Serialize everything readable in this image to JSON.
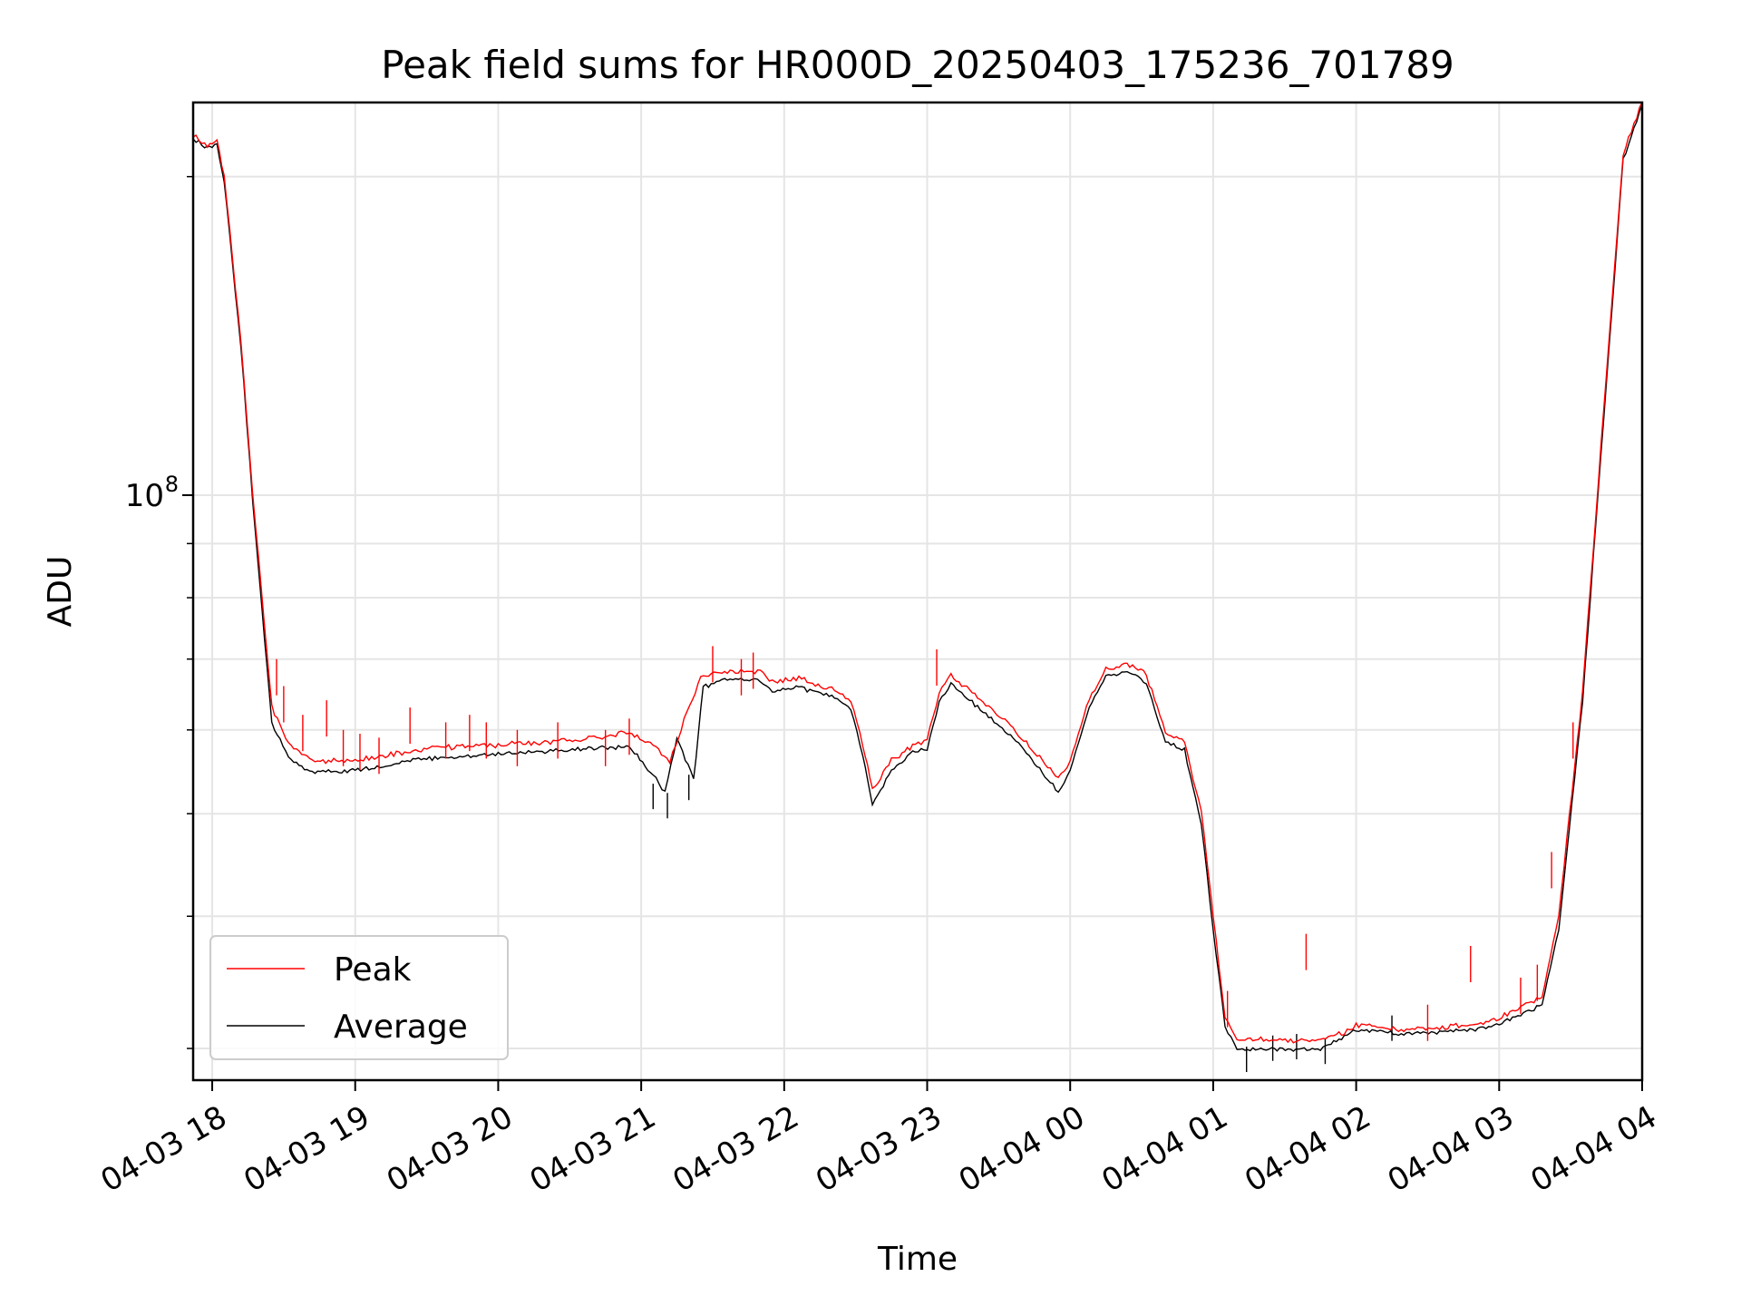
{
  "chart_data": {
    "type": "line",
    "title": "Peak field sums for HR000D_20250403_175236_701789",
    "xlabel": "Time",
    "ylabel": "ADU",
    "y_scale": "log",
    "xlim": [
      "2025-04-03 17:52",
      "2025-04-04 04:00"
    ],
    "ylim": [
      28000000,
      235000000
    ],
    "grid": true,
    "legend_position": "lower-left",
    "x_ticks": [
      {
        "t": "2025-04-03 18:00",
        "label": "04-03 18"
      },
      {
        "t": "2025-04-03 19:00",
        "label": "04-03 19"
      },
      {
        "t": "2025-04-03 20:00",
        "label": "04-03 20"
      },
      {
        "t": "2025-04-03 21:00",
        "label": "04-03 21"
      },
      {
        "t": "2025-04-03 22:00",
        "label": "04-03 22"
      },
      {
        "t": "2025-04-03 23:00",
        "label": "04-03 23"
      },
      {
        "t": "2025-04-04 00:00",
        "label": "04-04 00"
      },
      {
        "t": "2025-04-04 01:00",
        "label": "04-04 01"
      },
      {
        "t": "2025-04-04 02:00",
        "label": "04-04 02"
      },
      {
        "t": "2025-04-04 03:00",
        "label": "04-04 03"
      },
      {
        "t": "2025-04-04 04:00",
        "label": "04-04 04"
      }
    ],
    "y_major_ticks": [
      {
        "value": 100000000,
        "base": "10",
        "exponent": "8"
      }
    ],
    "y_minor_ticks": [
      30000000,
      40000000,
      50000000,
      60000000,
      70000000,
      80000000,
      90000000,
      200000000
    ],
    "series": [
      {
        "name": "Peak",
        "color": "#ff0000",
        "points": [
          [
            "2025-04-03 17:52",
            218000000
          ],
          [
            "2025-04-03 17:58",
            214000000
          ],
          [
            "2025-04-03 18:02",
            215000000
          ],
          [
            "2025-04-03 18:05",
            200000000
          ],
          [
            "2025-04-03 18:12",
            140000000
          ],
          [
            "2025-04-03 18:17",
            100000000
          ],
          [
            "2025-04-03 18:22",
            75000000
          ],
          [
            "2025-04-03 18:25",
            63000000
          ],
          [
            "2025-04-03 18:32",
            58000000
          ],
          [
            "2025-04-03 18:42",
            56000000
          ],
          [
            "2025-04-03 19:00",
            56000000
          ],
          [
            "2025-04-03 19:30",
            57500000
          ],
          [
            "2025-04-03 20:00",
            58000000
          ],
          [
            "2025-04-03 20:30",
            58500000
          ],
          [
            "2025-04-03 20:55",
            59500000
          ],
          [
            "2025-04-03 21:05",
            58000000
          ],
          [
            "2025-04-03 21:12",
            56000000
          ],
          [
            "2025-04-03 21:18",
            61000000
          ],
          [
            "2025-04-03 21:25",
            67000000
          ],
          [
            "2025-04-03 21:35",
            68000000
          ],
          [
            "2025-04-03 21:50",
            68000000
          ],
          [
            "2025-04-03 21:55",
            66500000
          ],
          [
            "2025-04-03 22:05",
            67000000
          ],
          [
            "2025-04-03 22:20",
            65500000
          ],
          [
            "2025-04-03 22:28",
            64000000
          ],
          [
            "2025-04-03 22:33",
            58000000
          ],
          [
            "2025-04-03 22:37",
            52500000
          ],
          [
            "2025-04-03 22:45",
            56000000
          ],
          [
            "2025-04-03 22:55",
            58000000
          ],
          [
            "2025-04-03 23:00",
            58500000
          ],
          [
            "2025-04-03 23:05",
            65000000
          ],
          [
            "2025-04-03 23:10",
            67500000
          ],
          [
            "2025-04-03 23:20",
            64500000
          ],
          [
            "2025-04-03 23:35",
            60500000
          ],
          [
            "2025-04-03 23:45",
            57000000
          ],
          [
            "2025-04-03 23:55",
            54000000
          ],
          [
            "2025-04-04 00:00",
            56000000
          ],
          [
            "2025-04-04 00:08",
            64000000
          ],
          [
            "2025-04-04 00:15",
            68500000
          ],
          [
            "2025-04-04 00:25",
            69000000
          ],
          [
            "2025-04-04 00:32",
            67500000
          ],
          [
            "2025-04-04 00:40",
            59500000
          ],
          [
            "2025-04-04 00:48",
            58500000
          ],
          [
            "2025-04-04 00:55",
            50000000
          ],
          [
            "2025-04-04 01:00",
            40000000
          ],
          [
            "2025-04-04 01:05",
            32000000
          ],
          [
            "2025-04-04 01:10",
            30500000
          ],
          [
            "2025-04-04 01:20",
            30500000
          ],
          [
            "2025-04-04 01:45",
            30500000
          ],
          [
            "2025-04-04 01:55",
            31000000
          ],
          [
            "2025-04-04 02:00",
            31500000
          ],
          [
            "2025-04-04 02:20",
            31200000
          ],
          [
            "2025-04-04 02:50",
            31500000
          ],
          [
            "2025-04-04 03:00",
            32000000
          ],
          [
            "2025-04-04 03:18",
            33500000
          ],
          [
            "2025-04-04 03:25",
            40000000
          ],
          [
            "2025-04-04 03:35",
            65000000
          ],
          [
            "2025-04-04 03:45",
            130000000
          ],
          [
            "2025-04-04 03:52",
            210000000
          ],
          [
            "2025-04-04 04:00",
            235000000
          ]
        ],
        "spikes": [
          [
            "2025-04-03 18:27",
            70000000
          ],
          [
            "2025-04-03 18:30",
            66000000
          ],
          [
            "2025-04-03 18:38",
            62000000
          ],
          [
            "2025-04-03 18:48",
            64000000
          ],
          [
            "2025-04-03 18:55",
            60000000
          ],
          [
            "2025-04-03 19:02",
            59500000
          ],
          [
            "2025-04-03 19:10",
            59000000
          ],
          [
            "2025-04-03 19:23",
            63000000
          ],
          [
            "2025-04-03 19:38",
            61000000
          ],
          [
            "2025-04-03 19:48",
            62000000
          ],
          [
            "2025-04-03 19:55",
            61000000
          ],
          [
            "2025-04-03 20:08",
            60000000
          ],
          [
            "2025-04-03 20:25",
            61000000
          ],
          [
            "2025-04-03 20:45",
            60000000
          ],
          [
            "2025-04-03 20:55",
            61500000
          ],
          [
            "2025-04-03 21:30",
            72000000
          ],
          [
            "2025-04-03 21:42",
            70000000
          ],
          [
            "2025-04-03 21:47",
            71000000
          ],
          [
            "2025-04-03 23:04",
            71500000
          ],
          [
            "2025-04-04 01:06",
            34000000
          ],
          [
            "2025-04-04 01:39",
            38500000
          ],
          [
            "2025-04-04 02:30",
            33000000
          ],
          [
            "2025-04-04 02:48",
            37500000
          ],
          [
            "2025-04-04 03:09",
            35000000
          ],
          [
            "2025-04-04 03:16",
            36000000
          ],
          [
            "2025-04-04 03:22",
            46000000
          ],
          [
            "2025-04-04 03:31",
            61000000
          ]
        ]
      },
      {
        "name": "Average",
        "color": "#000000",
        "points": [
          [
            "2025-04-03 17:52",
            217000000
          ],
          [
            "2025-04-03 17:58",
            213500000
          ],
          [
            "2025-04-03 18:02",
            214500000
          ],
          [
            "2025-04-03 18:05",
            199000000
          ],
          [
            "2025-04-03 18:12",
            139000000
          ],
          [
            "2025-04-03 18:17",
            99000000
          ],
          [
            "2025-04-03 18:22",
            73000000
          ],
          [
            "2025-04-03 18:25",
            61000000
          ],
          [
            "2025-04-03 18:32",
            56500000
          ],
          [
            "2025-04-03 18:42",
            54800000
          ],
          [
            "2025-04-03 19:00",
            55000000
          ],
          [
            "2025-04-03 19:30",
            56500000
          ],
          [
            "2025-04-03 20:00",
            57000000
          ],
          [
            "2025-04-03 20:30",
            57500000
          ],
          [
            "2025-04-03 20:55",
            58000000
          ],
          [
            "2025-04-03 21:05",
            54500000
          ],
          [
            "2025-04-03 21:10",
            52500000
          ],
          [
            "2025-04-03 21:15",
            59000000
          ],
          [
            "2025-04-03 21:22",
            54000000
          ],
          [
            "2025-04-03 21:26",
            66000000
          ],
          [
            "2025-04-03 21:35",
            67000000
          ],
          [
            "2025-04-03 21:50",
            67000000
          ],
          [
            "2025-04-03 21:55",
            65500000
          ],
          [
            "2025-04-03 22:05",
            66000000
          ],
          [
            "2025-04-03 22:20",
            64500000
          ],
          [
            "2025-04-03 22:28",
            63000000
          ],
          [
            "2025-04-03 22:33",
            57000000
          ],
          [
            "2025-04-03 22:37",
            51000000
          ],
          [
            "2025-04-03 22:45",
            55000000
          ],
          [
            "2025-04-03 22:55",
            57500000
          ],
          [
            "2025-04-03 23:00",
            57500000
          ],
          [
            "2025-04-03 23:05",
            64000000
          ],
          [
            "2025-04-03 23:10",
            66500000
          ],
          [
            "2025-04-03 23:20",
            63500000
          ],
          [
            "2025-04-03 23:35",
            59500000
          ],
          [
            "2025-04-03 23:45",
            56000000
          ],
          [
            "2025-04-03 23:55",
            52500000
          ],
          [
            "2025-04-04 00:00",
            55000000
          ],
          [
            "2025-04-04 00:08",
            63000000
          ],
          [
            "2025-04-04 00:15",
            67500000
          ],
          [
            "2025-04-04 00:25",
            68200000
          ],
          [
            "2025-04-04 00:32",
            66500000
          ],
          [
            "2025-04-04 00:40",
            58500000
          ],
          [
            "2025-04-04 00:48",
            57500000
          ],
          [
            "2025-04-04 00:55",
            49000000
          ],
          [
            "2025-04-04 01:00",
            39000000
          ],
          [
            "2025-04-04 01:05",
            31500000
          ],
          [
            "2025-04-04 01:10",
            30000000
          ],
          [
            "2025-04-04 01:20",
            30000000
          ],
          [
            "2025-04-04 01:45",
            30000000
          ],
          [
            "2025-04-04 01:55",
            30800000
          ],
          [
            "2025-04-04 02:00",
            31300000
          ],
          [
            "2025-04-04 02:20",
            31000000
          ],
          [
            "2025-04-04 02:50",
            31300000
          ],
          [
            "2025-04-04 03:00",
            31700000
          ],
          [
            "2025-04-04 03:18",
            33000000
          ],
          [
            "2025-04-04 03:25",
            39000000
          ],
          [
            "2025-04-04 03:35",
            64000000
          ],
          [
            "2025-04-04 03:45",
            128000000
          ],
          [
            "2025-04-04 03:52",
            208000000
          ],
          [
            "2025-04-04 04:00",
            234000000
          ]
        ],
        "dips": [
          [
            "2025-04-03 21:05",
            50500000
          ],
          [
            "2025-04-03 21:11",
            49500000
          ],
          [
            "2025-04-03 21:20",
            51500000
          ],
          [
            "2025-04-04 01:14",
            28500000
          ],
          [
            "2025-04-04 01:25",
            29200000
          ],
          [
            "2025-04-04 01:35",
            29300000
          ],
          [
            "2025-04-04 01:47",
            29000000
          ],
          [
            "2025-04-04 02:15",
            30500000
          ]
        ]
      }
    ]
  }
}
